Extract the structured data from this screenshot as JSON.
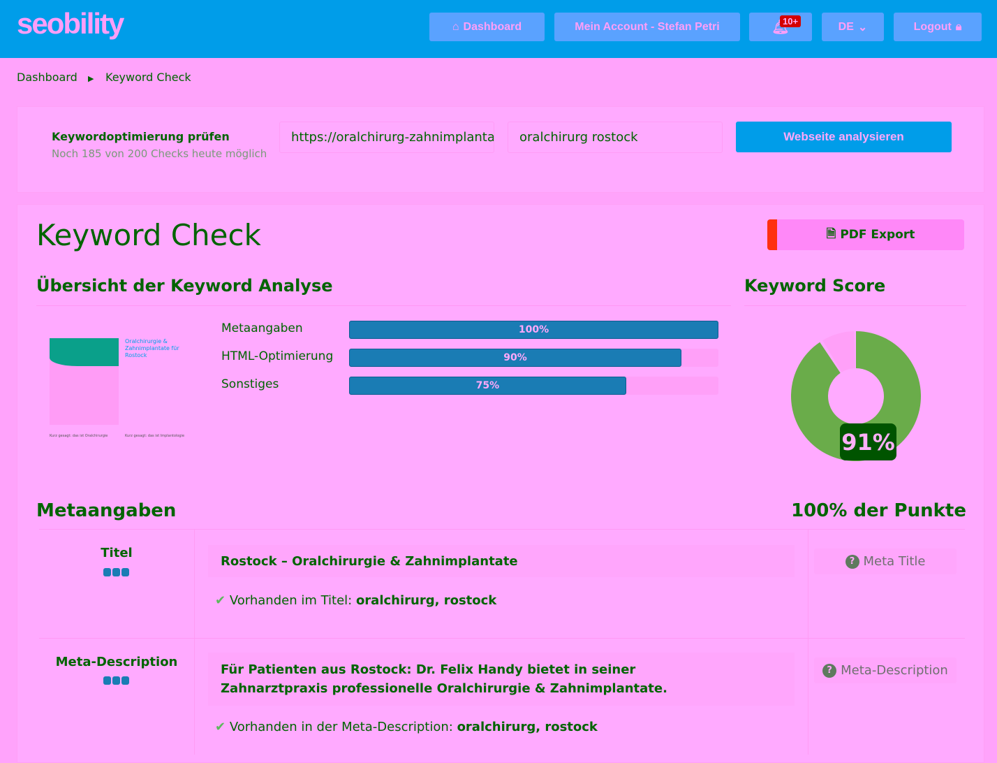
{
  "header": {
    "logo": "seobility",
    "nav": {
      "dashboard": "Dashboard",
      "account": "Mein Account - Stefan Petri",
      "notifications_badge": "10+",
      "language": "DE",
      "logout": "Logout"
    }
  },
  "breadcrumb": [
    "Dashboard",
    "Keyword Check"
  ],
  "check_form": {
    "title": "Keywordoptimierung prüfen",
    "subtitle": "Noch 185 von 200 Checks heute möglich",
    "url_value": "https://oralchirurg-zahnimplantat",
    "keyword_value": "oralchirurg rostock",
    "submit_label": "Webseite analysieren"
  },
  "page": {
    "title": "Keyword Check",
    "pdf_export": "PDF Export"
  },
  "overview": {
    "title": "Übersicht der Keyword Analyse",
    "bars": [
      {
        "label": "Metaangaben",
        "value": 100,
        "text": "100%"
      },
      {
        "label": "HTML-Optimierung",
        "value": 90,
        "text": "90%"
      },
      {
        "label": "Sonstiges",
        "value": 75,
        "text": "75%"
      }
    ],
    "thumbnail": {
      "heading": "Oralchirurgie & Zahnimplantate für Rostock",
      "captions": [
        "Kurz gesagt: das ist Oralchirurgie",
        "Kurz gesagt: das ist Implantologie"
      ]
    }
  },
  "score": {
    "title": "Keyword Score",
    "value": 91,
    "text": "91%",
    "colors": {
      "score": "#6aac4a",
      "rest": "#ffa0f8"
    }
  },
  "meta": {
    "title": "Metaangaben",
    "points": "100% der Punkte",
    "rows": [
      {
        "label": "Titel",
        "value": "Rostock – Oralchirurgie & Zahnimplantate",
        "check_prefix": "Vorhanden im Titel: ",
        "check_keywords": "oralchirurg, rostock",
        "help": "Meta Title"
      },
      {
        "label": "Meta-Description",
        "value": "Für Patienten aus Rostock: Dr. Felix Handy bietet in seiner Zahnarztpraxis professionelle Oralchirurgie & Zahnimplantate.",
        "check_prefix": "Vorhanden in der Meta-Description: ",
        "check_keywords": "oralchirurg, rostock",
        "help": "Meta-Description"
      }
    ]
  }
}
